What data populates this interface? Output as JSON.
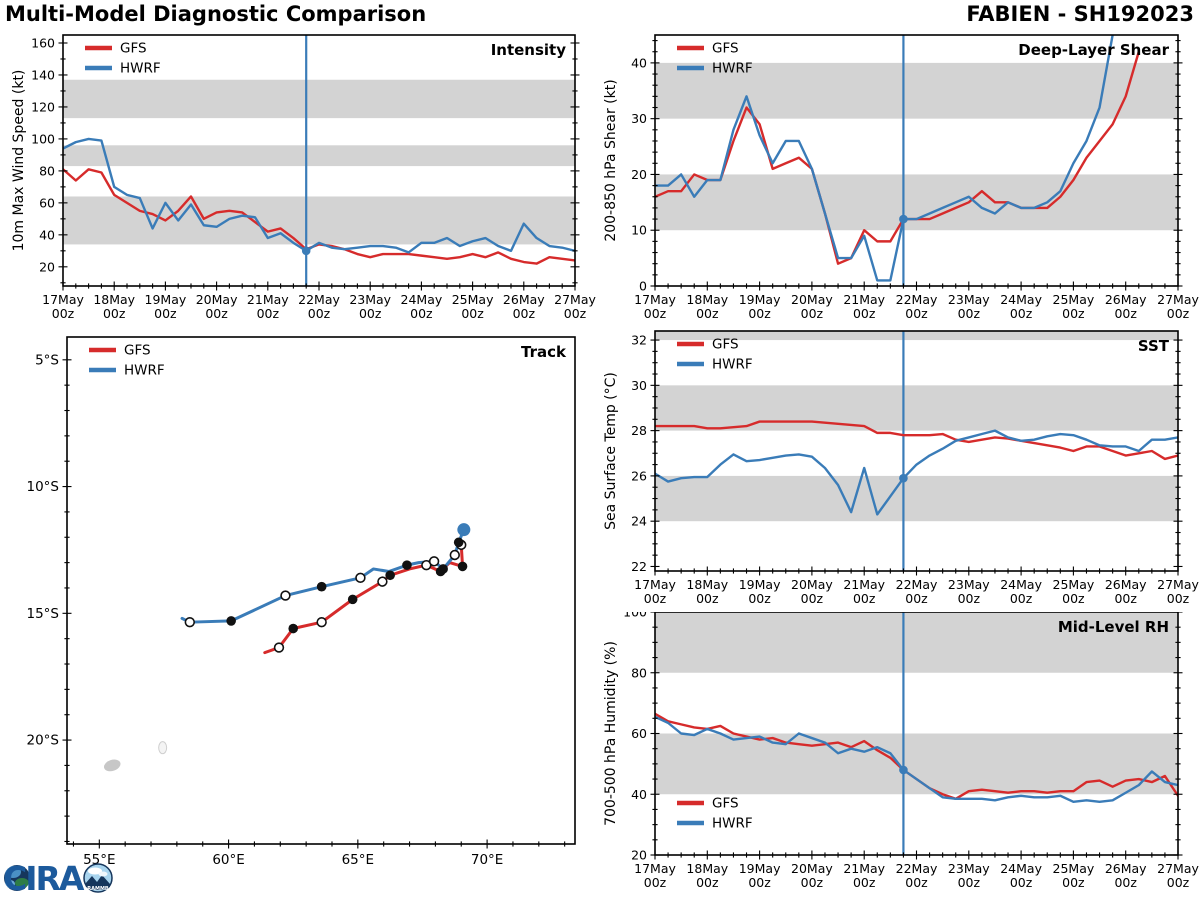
{
  "header": {
    "title": "Multi-Model Diagnostic Comparison",
    "storm_id": "FABIEN - SH192023"
  },
  "logo": {
    "cira": "CIRA",
    "rammb": "RAMMB"
  },
  "colors": {
    "gfs": "#d62b2b",
    "hwrf": "#3a7cb8",
    "band": "#d3d3d3",
    "now_line": "#3a7cb8",
    "frame": "#000000",
    "island": "#c7c7c7"
  },
  "time_axis": {
    "days": [
      "17May",
      "18May",
      "19May",
      "20May",
      "21May",
      "22May",
      "23May",
      "24May",
      "25May",
      "26May",
      "27May"
    ],
    "hour_label": "00z",
    "time_step_hours": 6,
    "points_per_series": 41,
    "now_index": 19
  },
  "chart_data": [
    {
      "id": "intensity",
      "type": "line",
      "title": "Intensity",
      "ylabel": "10m Max Wind Speed (kt)",
      "ylim": [
        8,
        165
      ],
      "yticks": [
        20,
        40,
        60,
        80,
        100,
        120,
        140,
        160
      ],
      "y_minor_step": 10,
      "bands": [
        [
          34,
          64
        ],
        [
          83,
          96
        ],
        [
          113,
          137
        ]
      ],
      "legend_pos": "tl",
      "now_dot": 30,
      "series": [
        {
          "name": "GFS",
          "color": "gfs",
          "values": [
            81,
            74,
            81,
            79,
            65,
            60,
            55,
            53,
            49,
            55,
            64,
            50,
            54,
            55,
            54,
            48,
            42,
            44,
            38,
            31,
            34,
            33,
            31,
            28,
            26,
            28,
            28,
            28,
            27,
            26,
            25,
            26,
            28,
            26,
            29,
            25,
            23,
            22,
            26,
            25,
            24
          ]
        },
        {
          "name": "HWRF",
          "color": "hwrf",
          "values": [
            94,
            98,
            100,
            99,
            70,
            65,
            63,
            44,
            60,
            49,
            59,
            46,
            45,
            50,
            52,
            51,
            38,
            41,
            35,
            30,
            35,
            32,
            31,
            32,
            33,
            33,
            32,
            29,
            35,
            35,
            38,
            33,
            36,
            38,
            33,
            30,
            47,
            38,
            33,
            32,
            30
          ]
        }
      ]
    },
    {
      "id": "shear",
      "type": "line",
      "title": "Deep-Layer Shear",
      "ylabel": "200-850 hPa Shear (kt)",
      "ylim": [
        0,
        45
      ],
      "yticks": [
        0,
        10,
        20,
        30,
        40
      ],
      "y_minor_step": 2,
      "bands": [
        [
          10,
          20
        ],
        [
          30,
          40
        ]
      ],
      "legend_pos": "tl",
      "now_dot": 12,
      "series": [
        {
          "name": "GFS",
          "color": "gfs",
          "values": [
            16,
            17,
            17,
            20,
            19,
            19,
            26,
            32,
            29,
            21,
            22,
            23,
            21,
            13,
            4,
            5,
            10,
            8,
            8,
            12,
            12,
            12,
            13,
            14,
            15,
            17,
            15,
            15,
            14,
            14,
            14,
            16,
            19,
            23,
            26,
            29,
            34,
            42,
            null,
            null,
            null
          ]
        },
        {
          "name": "HWRF",
          "color": "hwrf",
          "values": [
            18,
            18,
            20,
            16,
            19,
            19,
            28,
            34,
            27,
            22,
            26,
            26,
            21,
            13,
            5,
            5,
            9,
            1,
            1,
            12,
            12,
            13,
            14,
            15,
            16,
            14,
            13,
            15,
            14,
            14,
            15,
            17,
            22,
            26,
            32,
            45,
            null,
            null,
            null,
            null,
            null
          ]
        }
      ]
    },
    {
      "id": "sst",
      "type": "line",
      "title": "SST",
      "ylabel": "Sea Surface Temp (°C)",
      "ylim": [
        21.8,
        32.4
      ],
      "yticks": [
        22,
        24,
        26,
        28,
        30,
        32
      ],
      "y_minor_step": 0.5,
      "bands": [
        [
          24,
          26
        ],
        [
          28,
          30
        ],
        [
          32,
          34
        ]
      ],
      "legend_pos": "tl",
      "now_dot": 25.9,
      "series": [
        {
          "name": "GFS",
          "color": "gfs",
          "values": [
            28.2,
            28.2,
            28.2,
            28.2,
            28.1,
            28.1,
            28.15,
            28.2,
            28.4,
            28.4,
            28.4,
            28.4,
            28.4,
            28.35,
            28.3,
            28.25,
            28.2,
            27.9,
            27.9,
            27.8,
            27.8,
            27.8,
            27.85,
            27.6,
            27.5,
            27.6,
            27.7,
            27.65,
            27.55,
            27.45,
            27.35,
            27.25,
            27.1,
            27.3,
            27.3,
            27.1,
            26.9,
            27.0,
            27.1,
            26.75,
            26.9
          ]
        },
        {
          "name": "HWRF",
          "color": "hwrf",
          "values": [
            26.1,
            25.75,
            25.9,
            25.95,
            25.95,
            26.5,
            26.95,
            26.65,
            26.7,
            26.8,
            26.9,
            26.95,
            26.85,
            26.35,
            25.6,
            24.4,
            26.35,
            24.3,
            25.1,
            25.9,
            26.5,
            26.9,
            27.2,
            27.55,
            27.7,
            27.85,
            28.0,
            27.7,
            27.55,
            27.6,
            27.75,
            27.85,
            27.8,
            27.6,
            27.35,
            27.3,
            27.3,
            27.1,
            27.6,
            27.6,
            27.7
          ]
        }
      ]
    },
    {
      "id": "rh",
      "type": "line",
      "title": "Mid-Level RH",
      "ylabel": "700-500 hPa Humidity (%)",
      "ylim": [
        20,
        100
      ],
      "yticks": [
        20,
        40,
        60,
        80,
        100
      ],
      "y_minor_step": 5,
      "bands": [
        [
          40,
          60
        ],
        [
          80,
          100
        ]
      ],
      "legend_pos": "bl",
      "now_dot": 48,
      "series": [
        {
          "name": "GFS",
          "color": "gfs",
          "values": [
            66.5,
            64,
            63,
            62,
            61.5,
            62.5,
            60,
            59,
            58,
            58.5,
            57,
            56.5,
            56,
            56.5,
            57,
            55.5,
            57.5,
            54.5,
            52,
            48,
            45,
            42,
            40,
            38.5,
            41,
            41.5,
            41,
            40.5,
            41,
            41,
            40.5,
            41,
            41,
            44,
            44.5,
            42.5,
            44.5,
            45,
            44,
            46,
            39.5
          ]
        },
        {
          "name": "HWRF",
          "color": "hwrf",
          "values": [
            65.5,
            63.5,
            60,
            59.5,
            61.5,
            60,
            58,
            58.5,
            59,
            57,
            56.5,
            60,
            58.5,
            57,
            53.5,
            55,
            54,
            55.5,
            53.5,
            48,
            45,
            42,
            39,
            38.5,
            38.5,
            38.5,
            38,
            39,
            39.5,
            39,
            39,
            39.5,
            37.5,
            38,
            37.5,
            38,
            40.5,
            43,
            47.5,
            44,
            43
          ]
        }
      ]
    },
    {
      "id": "track",
      "type": "track",
      "title": "Track",
      "xlim": [
        53.75,
        73.4
      ],
      "ylim_lat": [
        4.1,
        24.1
      ],
      "xticks": [
        55,
        60,
        65,
        70
      ],
      "xtick_labels": [
        "55°E",
        "60°E",
        "65°E",
        "70°E"
      ],
      "yticks": [
        5,
        10,
        15,
        20
      ],
      "ytick_labels": [
        "5°S",
        "10°S",
        "15°S",
        "20°S"
      ],
      "legend_pos": "tl",
      "islands": [
        {
          "name": "reunion-island",
          "lon": 55.5,
          "lat": 21.0
        },
        {
          "name": "mauritius-island",
          "lon": 57.45,
          "lat": 20.3
        }
      ],
      "series": [
        {
          "name": "GFS",
          "color": "gfs",
          "points": [
            [
              69.0,
              12.3,
              "open"
            ],
            [
              69.05,
              13.15,
              "filled"
            ],
            [
              68.55,
              13.0,
              "none"
            ],
            [
              68.2,
              13.35,
              "filled"
            ],
            [
              67.65,
              13.1,
              "open"
            ],
            [
              67.0,
              13.25,
              "none"
            ],
            [
              66.25,
              13.5,
              "filled"
            ],
            [
              65.95,
              13.75,
              "open"
            ],
            [
              64.8,
              14.45,
              "filled"
            ],
            [
              63.6,
              15.35,
              "open"
            ],
            [
              62.5,
              15.6,
              "filled"
            ],
            [
              61.95,
              16.35,
              "open"
            ],
            [
              61.4,
              16.55,
              "none"
            ]
          ]
        },
        {
          "name": "HWRF",
          "color": "hwrf",
          "points": [
            [
              69.1,
              11.7,
              "big"
            ],
            [
              68.9,
              12.2,
              "filled"
            ],
            [
              68.75,
              12.7,
              "open"
            ],
            [
              68.3,
              13.25,
              "filled"
            ],
            [
              67.95,
              12.95,
              "open"
            ],
            [
              67.35,
              13.0,
              "none"
            ],
            [
              66.9,
              13.1,
              "filled"
            ],
            [
              66.2,
              13.35,
              "none"
            ],
            [
              65.6,
              13.25,
              "none"
            ],
            [
              65.1,
              13.6,
              "open"
            ],
            [
              63.6,
              13.95,
              "filled"
            ],
            [
              62.2,
              14.3,
              "open"
            ],
            [
              60.1,
              15.3,
              "filled"
            ],
            [
              58.5,
              15.35,
              "open"
            ],
            [
              58.2,
              15.2,
              "none"
            ]
          ]
        }
      ]
    }
  ]
}
